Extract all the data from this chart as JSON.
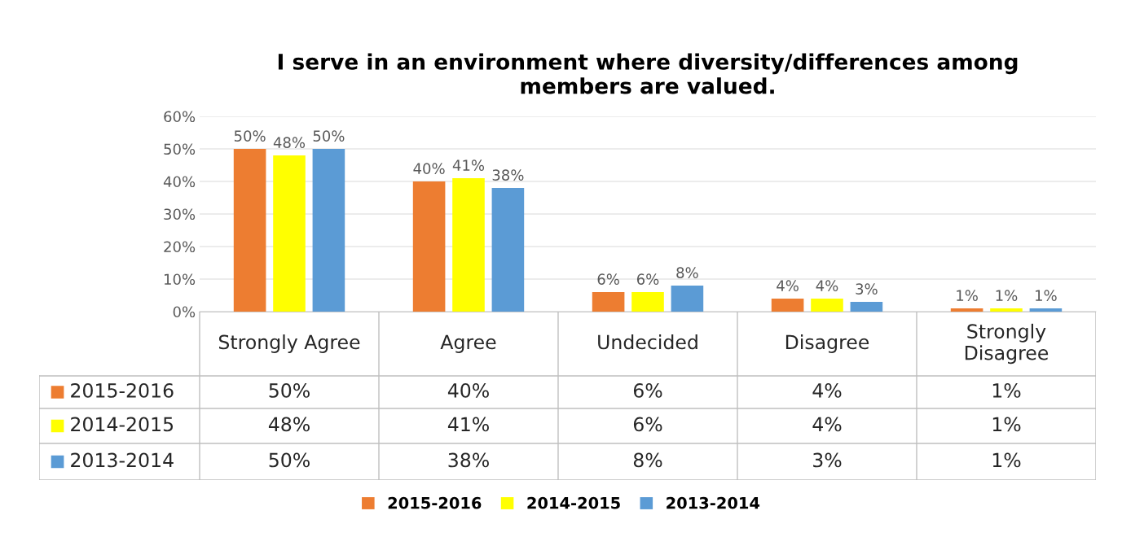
{
  "chart_data": {
    "type": "bar",
    "title": "I serve in an environment where diversity/differences among\nmembers are valued.",
    "categories": [
      "Strongly Agree",
      "Agree",
      "Undecided",
      "Disagree",
      "Strongly\nDisagree"
    ],
    "series": [
      {
        "name": "2015-2016",
        "color": "#ed7d31",
        "values": [
          50,
          40,
          6,
          4,
          1
        ],
        "value_labels": [
          "50%",
          "40%",
          "6%",
          "4%",
          "1%"
        ]
      },
      {
        "name": "2014-2015",
        "color": "#ffff00",
        "values": [
          48,
          41,
          6,
          4,
          1
        ],
        "value_labels": [
          "48%",
          "41%",
          "6%",
          "4%",
          "1%"
        ]
      },
      {
        "name": "2013-2014",
        "color": "#5b9bd5",
        "values": [
          50,
          38,
          8,
          3,
          1
        ],
        "value_labels": [
          "50%",
          "38%",
          "8%",
          "3%",
          "1%"
        ]
      }
    ],
    "ylim": [
      0,
      60
    ],
    "yticks": [
      {
        "value": 0,
        "label": "0%"
      },
      {
        "value": 10,
        "label": "10%"
      },
      {
        "value": 20,
        "label": "20%"
      },
      {
        "value": 30,
        "label": "30%"
      },
      {
        "value": 40,
        "label": "40%"
      },
      {
        "value": 50,
        "label": "50%"
      },
      {
        "value": 60,
        "label": "60%"
      }
    ],
    "grid": "y",
    "legend": "bottom"
  }
}
